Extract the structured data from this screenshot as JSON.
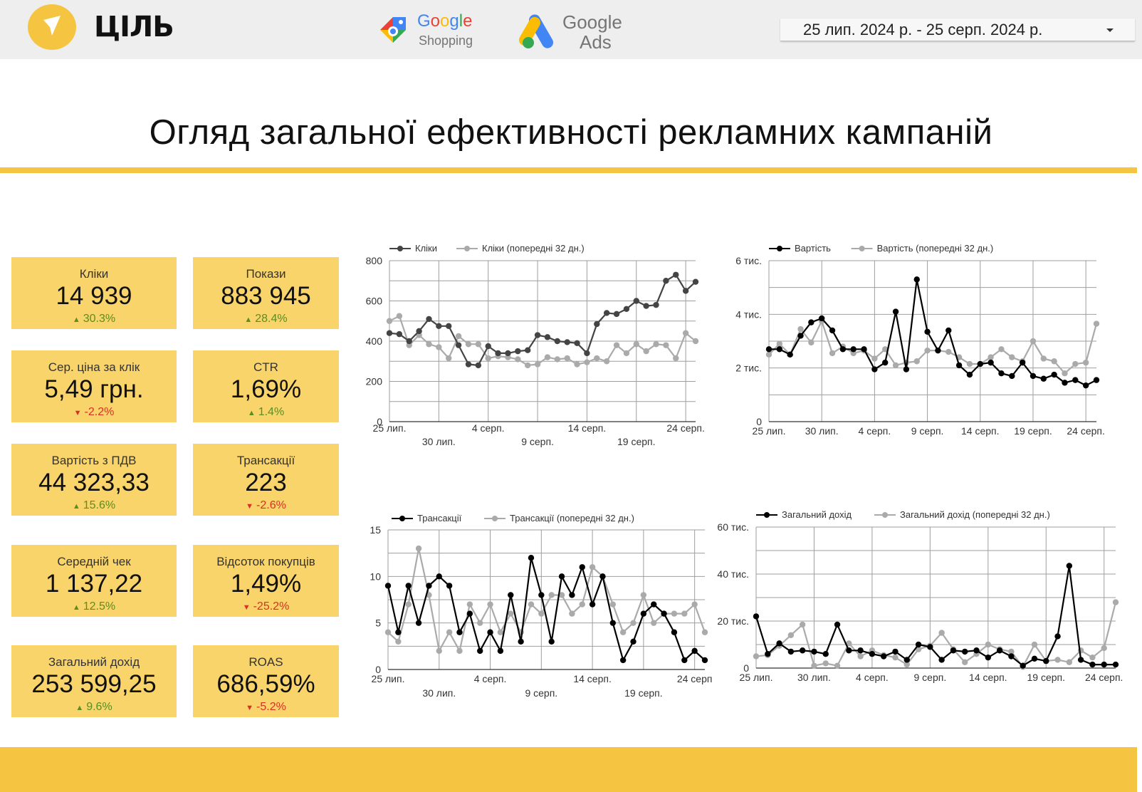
{
  "header": {
    "logo_text": "ЦІЛЬ",
    "google_shopping_word": [
      "G",
      "o",
      "o",
      "g",
      "l",
      "e"
    ],
    "google_shopping_sub": "Shopping",
    "google_ads_word": "Google",
    "google_ads_sub": "Ads",
    "date_range": "25 лип. 2024 р. - 25 серп. 2024 р."
  },
  "title": "Огляд загальної ефективності рекламних кампаній",
  "colors": {
    "accent": "#f5c542",
    "card": "#f8d46b",
    "up": "#5a8e1e",
    "down": "#d93025",
    "series_current": "#000000",
    "series_current_clicks": "#444444",
    "series_prev": "#aaaaaa"
  },
  "kpis": {
    "clicks": {
      "label": "Кліки",
      "value": "14 939",
      "delta": "30.3%",
      "dir": "up"
    },
    "impressions": {
      "label": "Покази",
      "value": "883 945",
      "delta": "28.4%",
      "dir": "up"
    },
    "cpc": {
      "label": "Сер. ціна за клік",
      "value": "5,49 грн.",
      "delta": "-2.2%",
      "dir": "down"
    },
    "ctr": {
      "label": "CTR",
      "value": "1,69%",
      "delta": "1.4%",
      "dir": "up"
    },
    "cost": {
      "label": "Вартість з ПДВ",
      "value": "44 323,33",
      "delta": "15.6%",
      "dir": "up"
    },
    "transactions": {
      "label": "Трансакції",
      "value": "223",
      "delta": "-2.6%",
      "dir": "down"
    },
    "aov": {
      "label": "Середній чек",
      "value": "1 137,22",
      "delta": "12.5%",
      "dir": "up"
    },
    "buyer_rate": {
      "label": "Відсоток покупців",
      "value": "1,49%",
      "delta": "-25.2%",
      "dir": "down"
    },
    "revenue": {
      "label": "Загальний дохід",
      "value": "253 599,25",
      "delta": "9.6%",
      "dir": "up"
    },
    "roas": {
      "label": "ROAS",
      "value": "686,59%",
      "delta": "-5.2%",
      "dir": "down"
    }
  },
  "chart_data": [
    {
      "id": "clicks",
      "type": "line",
      "title": "",
      "xlabel": "",
      "ylabel": "",
      "x": [
        "25 лип.",
        "26 лип.",
        "27 лип.",
        "28 лип.",
        "29 лип.",
        "30 лип.",
        "31 лип.",
        "1 серп.",
        "2 серп.",
        "3 серп.",
        "4 серп.",
        "5 серп.",
        "6 серп.",
        "7 серп.",
        "8 серп.",
        "9 серп.",
        "10 серп.",
        "11 серп.",
        "12 серп.",
        "13 серп.",
        "14 серп.",
        "15 серп.",
        "16 серп.",
        "17 серп.",
        "18 серп.",
        "19 серп.",
        "20 серп.",
        "21 серп.",
        "22 серп.",
        "23 серп.",
        "24 серп.",
        "25 серп."
      ],
      "ylim": [
        0,
        800
      ],
      "yticks": [
        "0",
        "200",
        "400",
        "600",
        "800"
      ],
      "xtick_rows": [
        [
          "25 лип.",
          "4 серп.",
          "14 серп.",
          "24 серп."
        ],
        [
          "30 лип.",
          "9 серп.",
          "19 серп."
        ]
      ],
      "xtick_rows_idx": [
        [
          0,
          10,
          20,
          30
        ],
        [
          5,
          15,
          25
        ]
      ],
      "series": [
        {
          "name": "Кліки",
          "color": "#444444",
          "values": [
            440,
            435,
            400,
            450,
            510,
            475,
            475,
            380,
            285,
            280,
            375,
            340,
            340,
            350,
            355,
            430,
            420,
            400,
            395,
            390,
            340,
            485,
            540,
            535,
            560,
            600,
            575,
            580,
            700,
            730,
            650,
            695
          ]
        },
        {
          "name": "Кліки (попередні 32 дн.)",
          "color": "#aaaaaa",
          "values": [
            500,
            525,
            380,
            430,
            385,
            370,
            315,
            425,
            385,
            385,
            315,
            325,
            320,
            310,
            280,
            285,
            320,
            310,
            315,
            285,
            295,
            315,
            300,
            380,
            340,
            385,
            350,
            385,
            380,
            315,
            440,
            400
          ]
        }
      ],
      "grid": true,
      "legend": "top"
    },
    {
      "id": "cost",
      "type": "line",
      "title": "",
      "xlabel": "",
      "ylabel": "",
      "x": [
        "25 лип.",
        "26 лип.",
        "27 лип.",
        "28 лип.",
        "29 лип.",
        "30 лип.",
        "31 лип.",
        "1 серп.",
        "2 серп.",
        "3 серп.",
        "4 серп.",
        "5 серп.",
        "6 серп.",
        "7 серп.",
        "8 серп.",
        "9 серп.",
        "10 серп.",
        "11 серп.",
        "12 серп.",
        "13 серп.",
        "14 серп.",
        "15 серп.",
        "16 серп.",
        "17 серп.",
        "18 серп.",
        "19 серп.",
        "20 серп.",
        "21 серп.",
        "22 серп.",
        "23 серп.",
        "24 серп.",
        "25 серп."
      ],
      "ylim": [
        0,
        6000
      ],
      "yticks": [
        "0",
        "2 тис.",
        "4 тис.",
        "6 тис."
      ],
      "xtick_rows": [
        [
          "25 лип.",
          "30 лип.",
          "4 серп.",
          "9 серп.",
          "14 серп.",
          "19 серп.",
          "24 серп."
        ]
      ],
      "xtick_rows_idx": [
        [
          0,
          5,
          10,
          15,
          20,
          25,
          30
        ]
      ],
      "series": [
        {
          "name": "Вартість",
          "color": "#000000",
          "values": [
            2700,
            2700,
            2500,
            3200,
            3700,
            3850,
            3400,
            2700,
            2700,
            2700,
            1950,
            2200,
            4100,
            1950,
            5300,
            3350,
            2650,
            3400,
            2100,
            1750,
            2150,
            2200,
            1800,
            1700,
            2200,
            1700,
            1600,
            1750,
            1450,
            1550,
            1350,
            1550
          ]
        },
        {
          "name": "Вартість (попередні 32 дн.)",
          "color": "#aaaaaa",
          "values": [
            2500,
            2900,
            2500,
            3450,
            2950,
            3750,
            2550,
            2800,
            2550,
            2650,
            2350,
            2700,
            2100,
            2200,
            2250,
            2650,
            2650,
            2600,
            2400,
            2150,
            2150,
            2400,
            2700,
            2400,
            2250,
            3000,
            2350,
            2250,
            1800,
            2150,
            2200,
            3650
          ]
        }
      ],
      "grid": true,
      "legend": "top"
    },
    {
      "id": "transactions",
      "type": "line",
      "title": "",
      "xlabel": "",
      "ylabel": "",
      "x": [
        "25 лип.",
        "26 лип.",
        "27 лип.",
        "28 лип.",
        "29 лип.",
        "30 лип.",
        "31 лип.",
        "1 серп.",
        "2 серп.",
        "3 серп.",
        "4 серп.",
        "5 серп.",
        "6 серп.",
        "7 серп.",
        "8 серп.",
        "9 серп.",
        "10 серп.",
        "11 серп.",
        "12 серп.",
        "13 серп.",
        "14 серп.",
        "15 серп.",
        "16 серп.",
        "17 серп.",
        "18 серп.",
        "19 серп.",
        "20 серп.",
        "21 серп.",
        "22 серп.",
        "23 серп.",
        "24 серп.",
        "25 серп."
      ],
      "ylim": [
        0,
        15
      ],
      "yticks": [
        "0",
        "5",
        "10",
        "15"
      ],
      "xtick_rows": [
        [
          "25 лип.",
          "4 серп.",
          "14 серп.",
          "24 серп"
        ],
        [
          "30 лип.",
          "9 серп.",
          "19 серп."
        ]
      ],
      "xtick_rows_idx": [
        [
          0,
          10,
          20,
          30
        ],
        [
          5,
          15,
          25
        ]
      ],
      "series": [
        {
          "name": "Трансакції",
          "color": "#000000",
          "values": [
            9,
            4,
            9,
            5,
            9,
            10,
            9,
            4,
            6,
            2,
            4,
            2,
            8,
            3,
            12,
            8,
            3,
            10,
            8,
            11,
            7,
            10,
            5,
            1,
            3,
            6,
            7,
            6,
            4,
            1,
            2,
            1
          ]
        },
        {
          "name": "Трансакції (попередні 32 дн.)",
          "color": "#aaaaaa",
          "values": [
            4,
            3,
            7,
            13,
            8,
            2,
            4,
            2,
            7,
            5,
            7,
            4,
            6,
            4,
            7,
            6,
            8,
            8,
            6,
            7,
            11,
            10,
            7,
            4,
            5,
            8,
            5,
            6,
            6,
            6,
            7,
            4
          ]
        }
      ],
      "grid": true,
      "legend": "top"
    },
    {
      "id": "revenue",
      "type": "line",
      "title": "",
      "xlabel": "",
      "ylabel": "",
      "x": [
        "25 лип.",
        "26 лип.",
        "27 лип.",
        "28 лип.",
        "29 лип.",
        "30 лип.",
        "31 лип.",
        "1 серп.",
        "2 серп.",
        "3 серп.",
        "4 серп.",
        "5 серп.",
        "6 серп.",
        "7 серп.",
        "8 серп.",
        "9 серп.",
        "10 серп.",
        "11 серп.",
        "12 серп.",
        "13 серп.",
        "14 серп.",
        "15 серп.",
        "16 серп.",
        "17 серп.",
        "18 серп.",
        "19 серп.",
        "20 серп.",
        "21 серп.",
        "22 серп.",
        "23 серп.",
        "24 серп.",
        "25 серп."
      ],
      "ylim": [
        0,
        60000
      ],
      "yticks": [
        "0",
        "20 тис.",
        "40 тис.",
        "60 тис."
      ],
      "xtick_rows": [
        [
          "25 лип.",
          "30 лип.",
          "4 серп.",
          "9 серп.",
          "14 серп.",
          "19 серп.",
          "24 серп."
        ]
      ],
      "xtick_rows_idx": [
        [
          0,
          5,
          10,
          15,
          20,
          25,
          30
        ]
      ],
      "series": [
        {
          "name": "Загальний дохід",
          "color": "#000000",
          "values": [
            22000,
            6000,
            10500,
            7000,
            7500,
            7000,
            6000,
            18500,
            7500,
            7500,
            6000,
            5000,
            7000,
            3500,
            10000,
            9000,
            3500,
            7500,
            7000,
            7500,
            4500,
            7500,
            5000,
            1000,
            4000,
            3000,
            13500,
            43500,
            3500,
            1500,
            1500,
            1500
          ]
        },
        {
          "name": "Загальний дохід (попередні 32 дн.)",
          "color": "#aaaaaa",
          "values": [
            5000,
            5500,
            9500,
            14000,
            18500,
            1000,
            2000,
            1000,
            10500,
            5000,
            7500,
            5500,
            4500,
            1500,
            8000,
            9500,
            15000,
            8000,
            2500,
            6000,
            10000,
            8000,
            7000,
            500,
            10000,
            3000,
            3500,
            2500,
            7500,
            4500,
            8500,
            28000
          ]
        }
      ],
      "grid": true,
      "legend": "top"
    }
  ]
}
